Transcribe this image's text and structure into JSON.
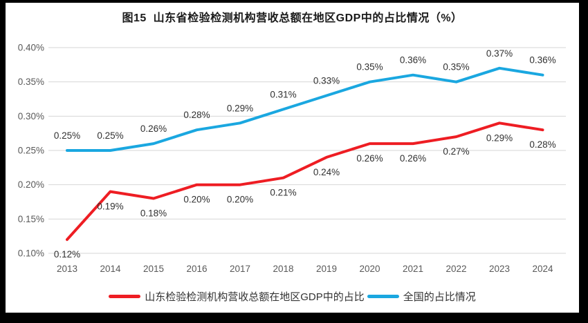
{
  "title": "图15  山东省检验检测机构营收总额在地区GDP中的占比情况（%）",
  "colors": {
    "shandong_line": "#EE1D23",
    "national_line": "#1AA7E0",
    "gridline": "#D6D6D6",
    "axis_text": "#595959",
    "data_label_text": "#303030",
    "title_text": "#1A1A1A",
    "frame": "#000000",
    "background": "#FFFFFF"
  },
  "chart_data": {
    "type": "line",
    "title": "图15  山东省检验检测机构营收总额在地区GDP中的占比情况（%）",
    "categories": [
      "2013",
      "2014",
      "2015",
      "2016",
      "2017",
      "2018",
      "2019",
      "2020",
      "2021",
      "2022",
      "2023",
      "2024"
    ],
    "series": [
      {
        "name": "山东检验检测机构营收总额在地区GDP中的占比",
        "color": "#EE1D23",
        "values": [
          0.12,
          0.19,
          0.18,
          0.2,
          0.2,
          0.21,
          0.24,
          0.26,
          0.26,
          0.27,
          0.29,
          0.28
        ],
        "labels": [
          "0.12%",
          "0.19%",
          "0.18%",
          "0.20%",
          "0.20%",
          "0.21%",
          "0.24%",
          "0.26%",
          "0.26%",
          "0.27%",
          "0.29%",
          "0.28%"
        ],
        "label_position": "below"
      },
      {
        "name": "全国的占比情况",
        "color": "#1AA7E0",
        "values": [
          0.25,
          0.25,
          0.26,
          0.28,
          0.29,
          0.31,
          0.33,
          0.35,
          0.36,
          0.35,
          0.37,
          0.36
        ],
        "labels": [
          "0.25%",
          "0.25%",
          "0.26%",
          "0.28%",
          "0.29%",
          "0.31%",
          "0.33%",
          "0.35%",
          "0.36%",
          "0.35%",
          "0.37%",
          "0.36%"
        ],
        "label_position": "above"
      }
    ],
    "ylim": [
      0.1,
      0.4
    ],
    "ytick_step": 0.05,
    "ytick_labels": [
      "0.10%",
      "0.15%",
      "0.20%",
      "0.25%",
      "0.30%",
      "0.35%",
      "0.40%"
    ],
    "grid": "horizontal",
    "legend_position": "bottom"
  },
  "legend": {
    "items": [
      {
        "label": "山东检验检测机构营收总额在地区GDP中的占比",
        "color": "#EE1D23"
      },
      {
        "label": "全国的占比情况",
        "color": "#1AA7E0"
      }
    ]
  }
}
